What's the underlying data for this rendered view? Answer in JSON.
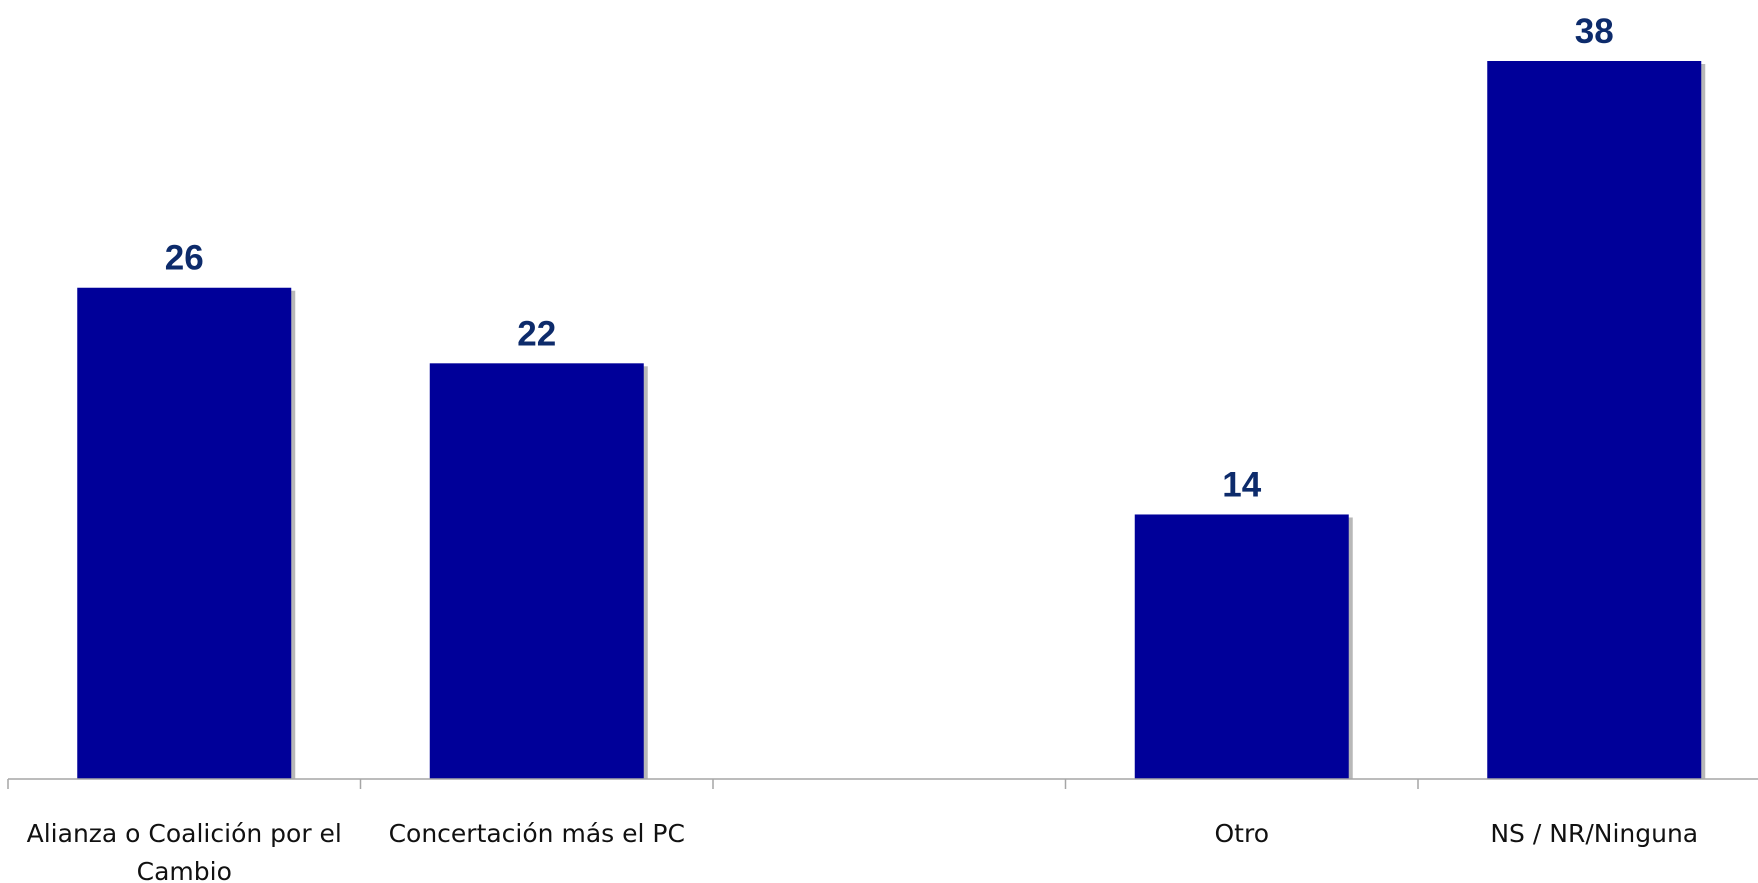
{
  "chart_data": {
    "type": "bar",
    "categories": [
      [
        "Alianza o Coalición por el",
        "Cambio"
      ],
      [
        "Concertación más el PC"
      ],
      [
        ""
      ],
      [
        "Otro"
      ],
      [
        "NS / NR/Ninguna"
      ]
    ],
    "values": [
      26,
      22,
      null,
      14,
      38
    ],
    "data_labels": [
      "26",
      "22",
      "",
      "14",
      "38"
    ],
    "title": "",
    "xlabel": "",
    "ylabel": "",
    "ylim": [
      0,
      38
    ],
    "grid": false,
    "legend": "none",
    "colors": {
      "bar": "#000099",
      "bar_shadow": "#b8b8b8",
      "label": "#0d2b6b",
      "axis": "#a6a6a6",
      "category_text": "#111111"
    }
  }
}
